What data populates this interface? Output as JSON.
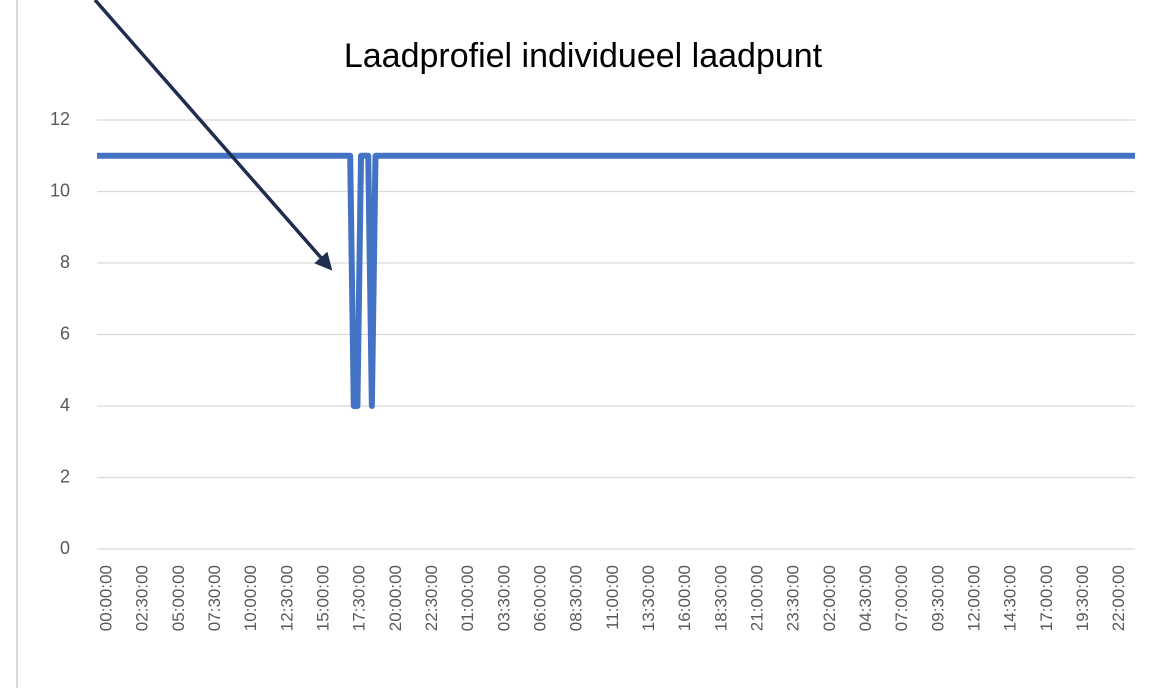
{
  "chart_data": {
    "type": "line",
    "title": "Laadprofiel individueel laadpunt",
    "categories": [
      "00:00:00",
      null,
      null,
      null,
      null,
      null,
      null,
      null,
      null,
      null,
      "02:30:00",
      null,
      null,
      null,
      null,
      null,
      null,
      null,
      null,
      null,
      "05:00:00",
      null,
      null,
      null,
      null,
      null,
      null,
      null,
      null,
      null,
      "07:30:00",
      null,
      null,
      null,
      null,
      null,
      null,
      null,
      null,
      null,
      "10:00:00",
      null,
      null,
      null,
      null,
      null,
      null,
      null,
      null,
      null,
      "12:30:00",
      null,
      null,
      null,
      null,
      null,
      null,
      null,
      null,
      null,
      "15:00:00",
      null,
      null,
      null,
      null,
      null,
      null,
      null,
      null,
      null,
      "17:30:00",
      null,
      null,
      null,
      null,
      null,
      null,
      null,
      null,
      null,
      "20:00:00",
      null,
      null,
      null,
      null,
      null,
      null,
      null,
      null,
      null,
      "22:30:00",
      null,
      null,
      null,
      null,
      null,
      null,
      null,
      null,
      null,
      "01:00:00",
      null,
      null,
      null,
      null,
      null,
      null,
      null,
      null,
      null,
      "03:30:00",
      null,
      null,
      null,
      null,
      null,
      null,
      null,
      null,
      null,
      "06:00:00",
      null,
      null,
      null,
      null,
      null,
      null,
      null,
      null,
      null,
      "08:30:00",
      null,
      null,
      null,
      null,
      null,
      null,
      null,
      null,
      null,
      "11:00:00",
      null,
      null,
      null,
      null,
      null,
      null,
      null,
      null,
      null,
      "13:30:00",
      null,
      null,
      null,
      null,
      null,
      null,
      null,
      null,
      null,
      "16:00:00",
      null,
      null,
      null,
      null,
      null,
      null,
      null,
      null,
      null,
      "18:30:00",
      null,
      null,
      null,
      null,
      null,
      null,
      null,
      null,
      null,
      "21:00:00",
      null,
      null,
      null,
      null,
      null,
      null,
      null,
      null,
      null,
      "23:30:00",
      null,
      null,
      null,
      null,
      null,
      null,
      null,
      null,
      null,
      "02:00:00",
      null,
      null,
      null,
      null,
      null,
      null,
      null,
      null,
      null,
      "04:30:00",
      null,
      null,
      null,
      null,
      null,
      null,
      null,
      null,
      null,
      "07:00:00",
      null,
      null,
      null,
      null,
      null,
      null,
      null,
      null,
      null,
      "09:30:00",
      null,
      null,
      null,
      null,
      null,
      null,
      null,
      null,
      null,
      "12:00:00",
      null,
      null,
      null,
      null,
      null,
      null,
      null,
      null,
      null,
      "14:30:00",
      null,
      null,
      null,
      null,
      null,
      null,
      null,
      null,
      null,
      "17:00:00",
      null,
      null,
      null,
      null,
      null,
      null,
      null,
      null,
      null,
      "19:30:00",
      null,
      null,
      null,
      null,
      null,
      null,
      null,
      null,
      null,
      "22:00:00",
      null,
      null,
      null,
      null,
      null,
      null,
      null
    ],
    "values": [
      11,
      11,
      11,
      11,
      11,
      11,
      11,
      11,
      11,
      11,
      11,
      11,
      11,
      11,
      11,
      11,
      11,
      11,
      11,
      11,
      11,
      11,
      11,
      11,
      11,
      11,
      11,
      11,
      11,
      11,
      11,
      11,
      11,
      11,
      11,
      11,
      11,
      11,
      11,
      11,
      11,
      11,
      11,
      11,
      11,
      11,
      11,
      11,
      11,
      11,
      11,
      11,
      11,
      11,
      11,
      11,
      11,
      11,
      11,
      11,
      11,
      11,
      11,
      11,
      11,
      11,
      11,
      11,
      11,
      11,
      11,
      4,
      4,
      11,
      11,
      11,
      4,
      11,
      11,
      11,
      11,
      11,
      11,
      11,
      11,
      11,
      11,
      11,
      11,
      11,
      11,
      11,
      11,
      11,
      11,
      11,
      11,
      11,
      11,
      11,
      11,
      11,
      11,
      11,
      11,
      11,
      11,
      11,
      11,
      11,
      11,
      11,
      11,
      11,
      11,
      11,
      11,
      11,
      11,
      11,
      11,
      11,
      11,
      11,
      11,
      11,
      11,
      11,
      11,
      11,
      11,
      11,
      11,
      11,
      11,
      11,
      11,
      11,
      11,
      11,
      11,
      11,
      11,
      11,
      11,
      11,
      11,
      11,
      11,
      11,
      11,
      11,
      11,
      11,
      11,
      11,
      11,
      11,
      11,
      11,
      11,
      11,
      11,
      11,
      11,
      11,
      11,
      11,
      11,
      11,
      11,
      11,
      11,
      11,
      11,
      11,
      11,
      11,
      11,
      11,
      11,
      11,
      11,
      11,
      11,
      11,
      11,
      11,
      11,
      11,
      11,
      11,
      11,
      11,
      11,
      11,
      11,
      11,
      11,
      11,
      11,
      11,
      11,
      11,
      11,
      11,
      11,
      11,
      11,
      11,
      11,
      11,
      11,
      11,
      11,
      11,
      11,
      11,
      11,
      11,
      11,
      11,
      11,
      11,
      11,
      11,
      11,
      11,
      11,
      11,
      11,
      11,
      11,
      11,
      11,
      11,
      11,
      11,
      11,
      11,
      11,
      11,
      11,
      11,
      11,
      11,
      11,
      11,
      11,
      11,
      11,
      11,
      11,
      11,
      11,
      11,
      11,
      11,
      11,
      11,
      11,
      11,
      11,
      11,
      11,
      11,
      11,
      11,
      11,
      11,
      11,
      11,
      11,
      11,
      11,
      11,
      11,
      11,
      11,
      11,
      11,
      11,
      11,
      11,
      11,
      11,
      11,
      11
    ],
    "color": "#4472c4",
    "ylim": [
      0,
      12
    ],
    "yticks": [
      0,
      2,
      4,
      6,
      8,
      10,
      12
    ],
    "grid": true
  }
}
